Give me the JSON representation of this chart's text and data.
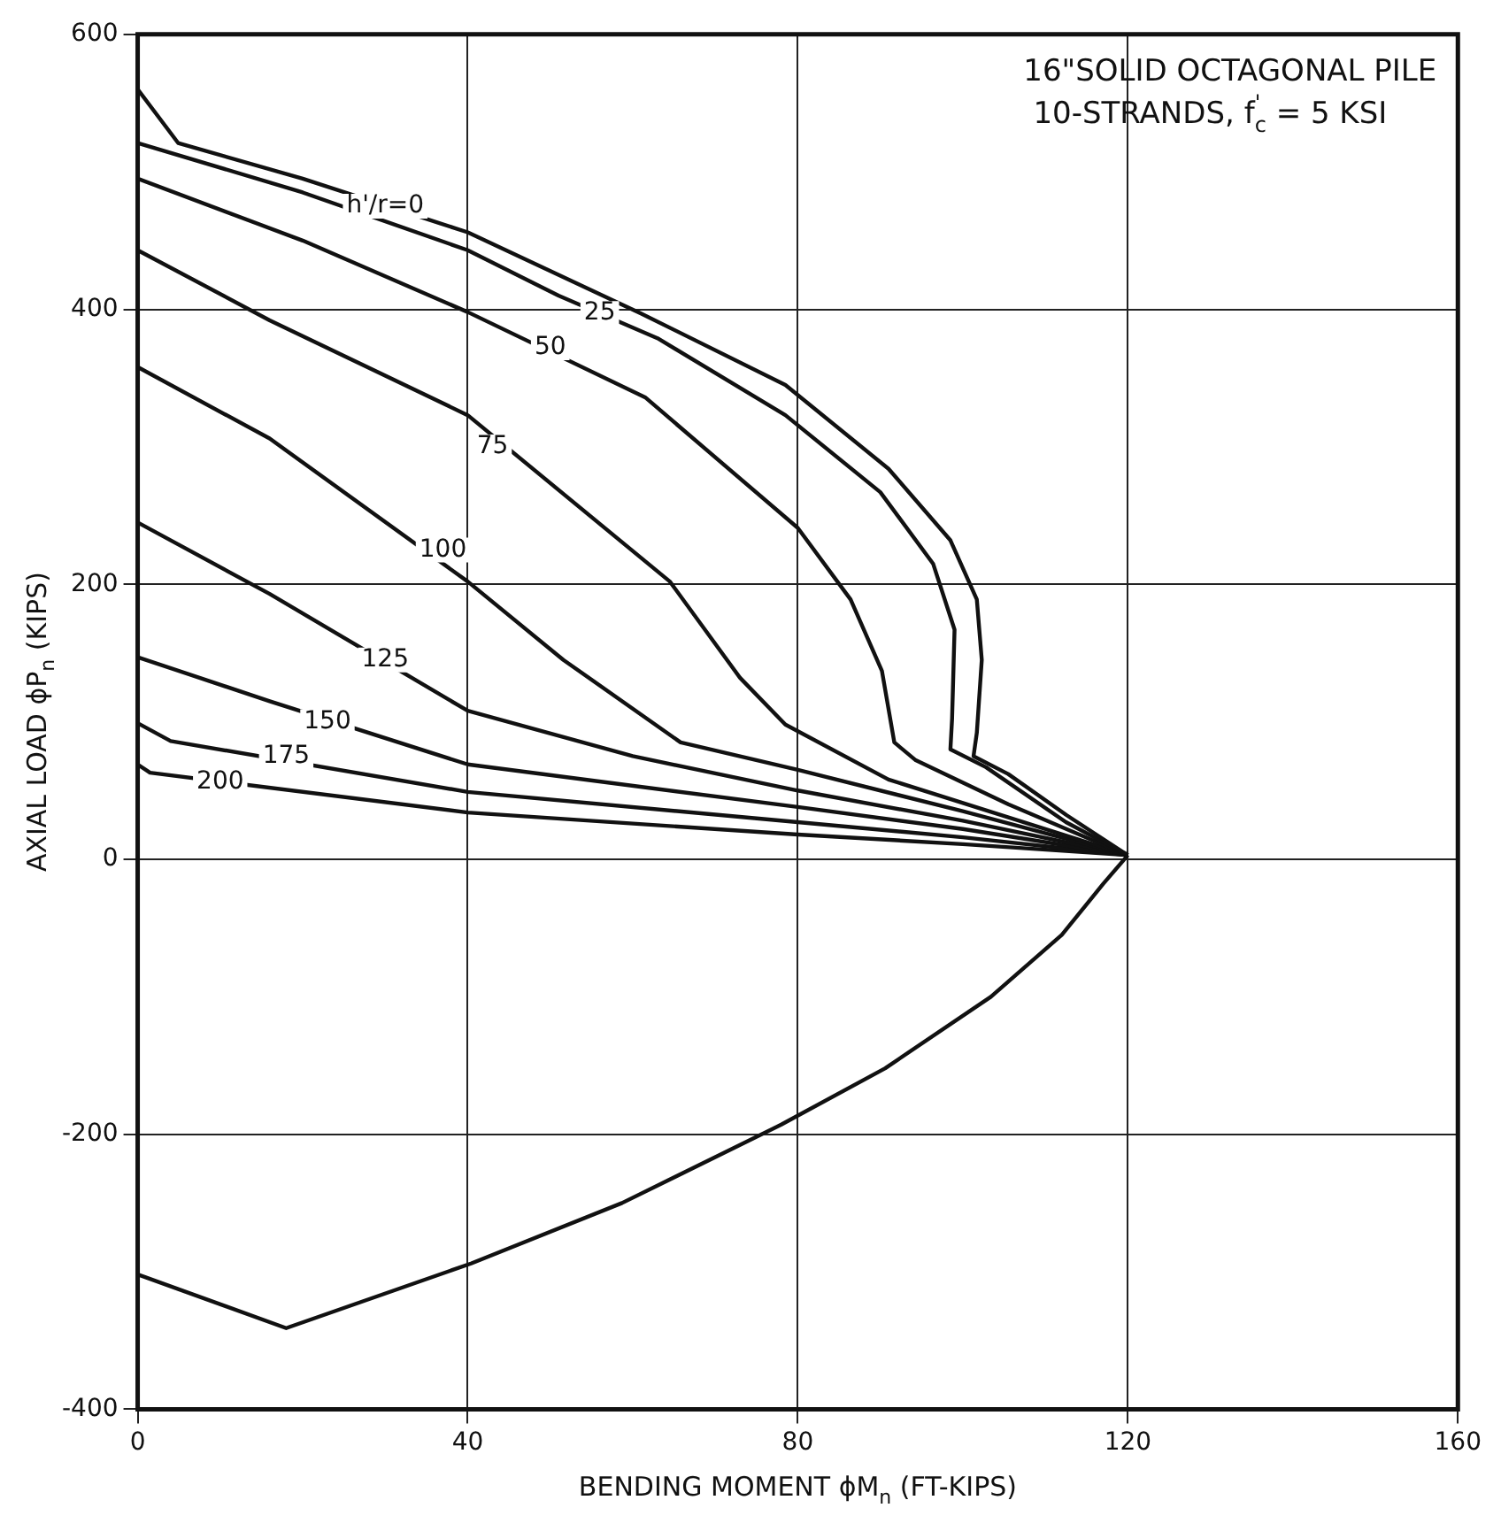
{
  "chart_data": {
    "type": "line",
    "title": "16\"SOLID OCTAGONAL PILE",
    "subtitle": "10-STRANDS, f$^{'}$$_{c}$ = 5 KSI",
    "xlabel": "BENDING MOMENT ϕM$_{n}$ (FT-KIPS)",
    "ylabel": "AXIAL LOAD ϕP$_{n}$ (KIPS)",
    "xlim": [
      0,
      160
    ],
    "xticks": [
      0,
      40,
      80,
      120,
      160
    ],
    "ylim": [
      -400,
      600
    ],
    "yticks": [
      -400,
      -200,
      0,
      200,
      400,
      600
    ],
    "grid": true,
    "legend": false,
    "marker": "none",
    "line_style": "solid",
    "series": [
      {
        "color": "#111111",
        "x": [
          0,
          4.9,
          20,
          40,
          61,
          78.5,
          91,
          98.5,
          101.7,
          102.3,
          101.7,
          101.3,
          105.5,
          112.6,
          120
        ],
        "values": [
          560,
          521,
          495,
          456,
          397,
          345,
          284,
          232,
          189,
          145,
          92,
          75,
          62,
          32,
          3
        ]
      },
      {
        "color": "#111111",
        "x": [
          0,
          20,
          40,
          51,
          63,
          78.5,
          90,
          96.4,
          99,
          98.7,
          98.5,
          102.8,
          112.5,
          120
        ],
        "values": [
          521,
          485,
          443,
          410,
          379,
          323,
          267,
          215,
          167,
          102,
          80,
          67,
          27,
          3
        ]
      },
      {
        "color": "#111111",
        "x": [
          0,
          20,
          40,
          61.5,
          80,
          86.4,
          90.2,
          91.7,
          94.3,
          105.5,
          120
        ],
        "values": [
          495,
          450,
          398,
          336,
          241,
          189,
          137,
          85,
          72,
          40,
          3
        ]
      },
      {
        "color": "#111111",
        "x": [
          0,
          16,
          40,
          64.5,
          73,
          78.5,
          91,
          120
        ],
        "values": [
          443,
          392,
          323,
          202,
          132,
          98,
          58,
          3
        ]
      },
      {
        "color": "#111111",
        "x": [
          0,
          16,
          40,
          51.6,
          65.8,
          80,
          100,
          120
        ],
        "values": [
          358,
          306,
          202,
          145,
          85,
          65,
          35,
          3
        ]
      },
      {
        "color": "#111111",
        "x": [
          0,
          16,
          40,
          60,
          80,
          100,
          120
        ],
        "values": [
          245,
          193,
          108,
          75,
          50,
          28,
          3
        ]
      },
      {
        "color": "#111111",
        "x": [
          0,
          16,
          40,
          80,
          100,
          120
        ],
        "values": [
          147,
          115,
          69,
          38,
          22,
          3
        ]
      },
      {
        "color": "#111111",
        "x": [
          0,
          4,
          40,
          80,
          100,
          120
        ],
        "values": [
          99,
          86,
          49,
          27,
          16,
          3
        ]
      },
      {
        "color": "#111111",
        "x": [
          0,
          1.5,
          40,
          80,
          100,
          120
        ],
        "values": [
          69,
          63,
          34,
          18,
          11,
          3
        ]
      },
      {
        "color": "#111111",
        "x": [
          0,
          18,
          40.4,
          58.7,
          78,
          90.6,
          103.4,
          112,
          117,
          120
        ],
        "values": [
          -302,
          -341,
          -294,
          -250,
          -193,
          -152,
          -100,
          -55,
          -18,
          3
        ]
      }
    ],
    "annotations": [
      {
        "text": "h'/r=0",
        "x": 30,
        "y": 475
      },
      {
        "text": "25",
        "x": 56,
        "y": 397
      },
      {
        "text": "50",
        "x": 50,
        "y": 372
      },
      {
        "text": "75",
        "x": 43,
        "y": 300
      },
      {
        "text": "100",
        "x": 37,
        "y": 225
      },
      {
        "text": "125",
        "x": 30,
        "y": 145
      },
      {
        "text": "150",
        "x": 23,
        "y": 100
      },
      {
        "text": "175",
        "x": 18,
        "y": 75
      },
      {
        "text": "200",
        "x": 10,
        "y": 56
      }
    ]
  }
}
